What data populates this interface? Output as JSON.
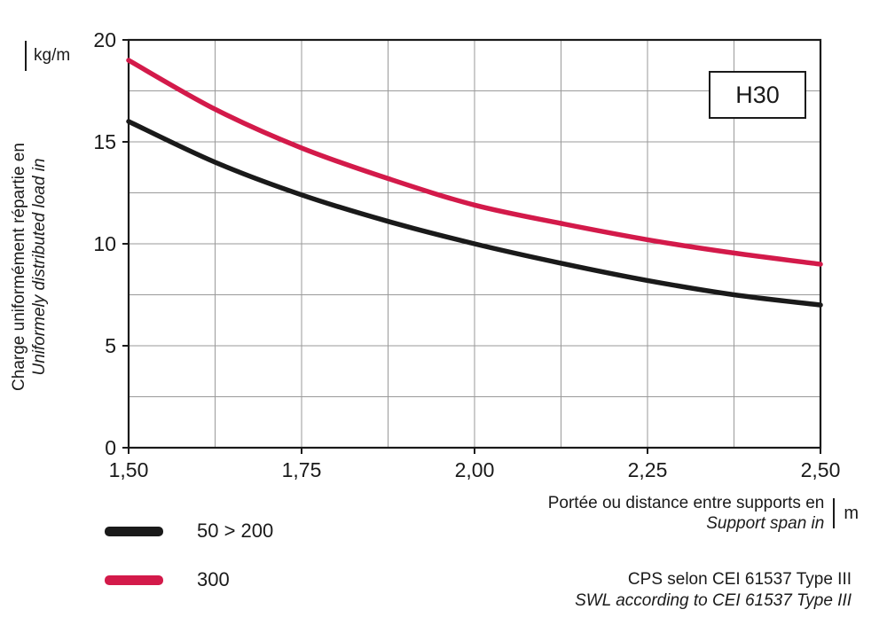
{
  "chart_data": {
    "type": "line",
    "title": "",
    "x_range": [
      1.5,
      2.5
    ],
    "y_range": [
      0,
      20
    ],
    "x_minor_step": 0.125,
    "y_minor_step": 2.5,
    "grid": true,
    "grid_color": "#9a9a9a",
    "axis_color": "#1a1a1a",
    "x_tick_labels": [
      "1,50",
      "1,75",
      "2,00",
      "2,25",
      "2,50"
    ],
    "x_tick_values": [
      1.5,
      1.75,
      2.0,
      2.25,
      2.5
    ],
    "y_ticks": [
      0,
      5,
      10,
      15,
      20
    ],
    "x": [
      1.5,
      1.625,
      1.75,
      1.875,
      2.0,
      2.125,
      2.25,
      2.375,
      2.5
    ],
    "series": [
      {
        "name": "50 > 200",
        "color": "#1a1a1a",
        "values": [
          16.0,
          14.0,
          12.4,
          11.1,
          10.0,
          9.05,
          8.2,
          7.5,
          7.0
        ]
      },
      {
        "name": "300",
        "color": "#d31a4a",
        "values": [
          19.0,
          16.6,
          14.7,
          13.2,
          11.9,
          11.0,
          10.2,
          9.55,
          9.0
        ]
      }
    ],
    "legend_position": "bottom-left",
    "xlabel": "Portée ou distance entre supports en (m)",
    "ylabel": "Charge uniformément répartie en (kg/m)"
  },
  "labels": {
    "badge": "H30",
    "y_title_fr": "Charge uniformément répartie en",
    "y_title_en": "Uniformely distributed load in",
    "y_unit": "kg/m",
    "x_title_fr": "Portée ou distance entre supports en",
    "x_title_en": "Support span in",
    "x_unit": "m",
    "footnote_fr": "CPS selon CEI 61537 Type III",
    "footnote_en": "SWL according to CEI 61537 Type III"
  }
}
